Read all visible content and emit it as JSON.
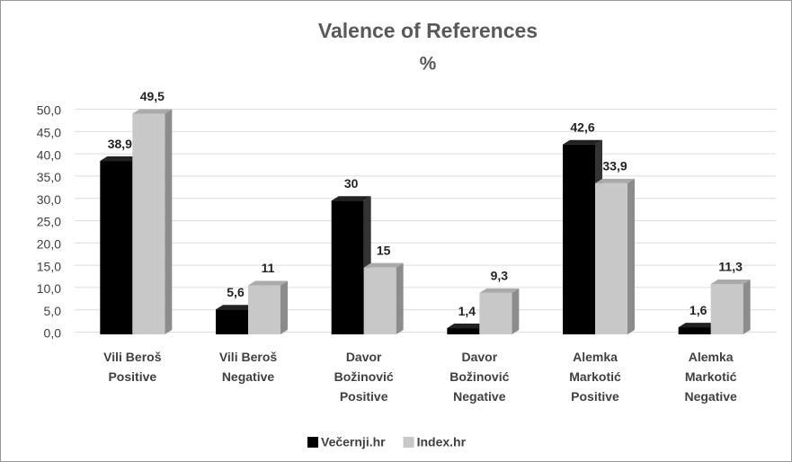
{
  "chart_data": {
    "type": "bar3d",
    "title": "Valence of References",
    "subtitle": "%",
    "categories": [
      "Vili Beroš\nPositive",
      "Vili Beroš\nNegative",
      "Davor\nBožinović\nPositive",
      "Davor\nBožinović\nNegative",
      "Alemka\nMarkotić\nPositive",
      "Alemka\nMarkotić\nNegative"
    ],
    "series": [
      {
        "name": "Večernji.hr",
        "color": "#000000",
        "values": [
          38.9,
          5.6,
          30,
          1.4,
          42.6,
          1.6
        ],
        "value_labels": [
          "38,9",
          "5,6",
          "30",
          "1,4",
          "42,6",
          "1,6"
        ]
      },
      {
        "name": "Index.hr",
        "color": "#c8c8c8",
        "values": [
          49.5,
          11,
          15,
          9.3,
          33.9,
          11.3
        ],
        "value_labels": [
          "49,5",
          "11",
          "15",
          "9,3",
          "33,9",
          "11,3"
        ]
      }
    ],
    "ylim": [
      0,
      50
    ],
    "yticks": [
      {
        "value": 0,
        "label": "0,0"
      },
      {
        "value": 5,
        "label": "5,0"
      },
      {
        "value": 10,
        "label": "10,0"
      },
      {
        "value": 15,
        "label": "15,0"
      },
      {
        "value": 20,
        "label": "20,0"
      },
      {
        "value": 25,
        "label": "25,0"
      },
      {
        "value": 30,
        "label": "30,0"
      },
      {
        "value": 35,
        "label": "35,0"
      },
      {
        "value": 40,
        "label": "40,0"
      },
      {
        "value": 45,
        "label": "45,0"
      },
      {
        "value": 50,
        "label": "50,0"
      }
    ],
    "grid": true,
    "legend": "bottom"
  }
}
